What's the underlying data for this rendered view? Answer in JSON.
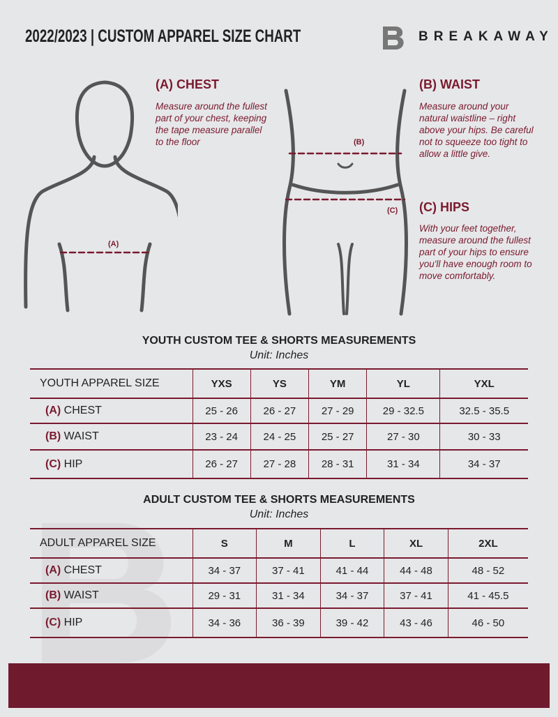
{
  "header": {
    "title": "2022/2023 | CUSTOM APPAREL SIZE CHART",
    "brand": "BREAKAWAY"
  },
  "colors": {
    "accent": "#7a1a2e",
    "background": "#e6e7e9"
  },
  "measures": {
    "chest": {
      "title": "(A) CHEST",
      "desc": "Measure around the fullest part of your chest, keeping the tape measure parallel to the floor",
      "marker": "(A)"
    },
    "waist": {
      "title": "(B) WAIST",
      "desc": "Measure around your natural waistline – right above your hips. Be careful not to squeeze too tight to allow a little give.",
      "marker": "(B)"
    },
    "hips": {
      "title": "(C) HIPS",
      "desc": "With your feet together, measure around the fullest part of your hips to ensure you'll have enough room to move comfortably.",
      "marker": "(C)"
    }
  },
  "youth": {
    "title": "YOUTH CUSTOM TEE & SHORTS MEASUREMENTS",
    "unit": "Unit: Inches",
    "header": "YOUTH APPAREL SIZE",
    "sizes": [
      "YXS",
      "YS",
      "YM",
      "YL",
      "YXL"
    ],
    "rows": [
      {
        "code": "(A)",
        "name": "CHEST",
        "values": [
          "25 - 26",
          "26 - 27",
          "27 - 29",
          "29 - 32.5",
          "32.5 - 35.5"
        ]
      },
      {
        "code": "(B)",
        "name": "WAIST",
        "values": [
          "23 - 24",
          "24 - 25",
          "25 - 27",
          "27 - 30",
          "30 - 33"
        ]
      },
      {
        "code": "(C)",
        "name": "HIP",
        "values": [
          "26 - 27",
          "27 - 28",
          "28 - 31",
          "31 - 34",
          "34 - 37"
        ]
      }
    ]
  },
  "adult": {
    "title": "ADULT CUSTOM TEE & SHORTS MEASUREMENTS",
    "unit": "Unit: Inches",
    "header": "ADULT APPAREL SIZE",
    "sizes": [
      "S",
      "M",
      "L",
      "XL",
      "2XL"
    ],
    "rows": [
      {
        "code": "(A)",
        "name": "CHEST",
        "values": [
          "34 - 37",
          "37 - 41",
          "41 - 44",
          "44 - 48",
          "48 - 52"
        ]
      },
      {
        "code": "(B)",
        "name": "WAIST",
        "values": [
          "29 - 31",
          "31 - 34",
          "34 - 37",
          "37 - 41",
          "41 - 45.5"
        ]
      },
      {
        "code": "(C)",
        "name": "HIP",
        "values": [
          "34 - 36",
          "36 - 39",
          "39 - 42",
          "43 - 46",
          "46 - 50"
        ]
      }
    ]
  }
}
